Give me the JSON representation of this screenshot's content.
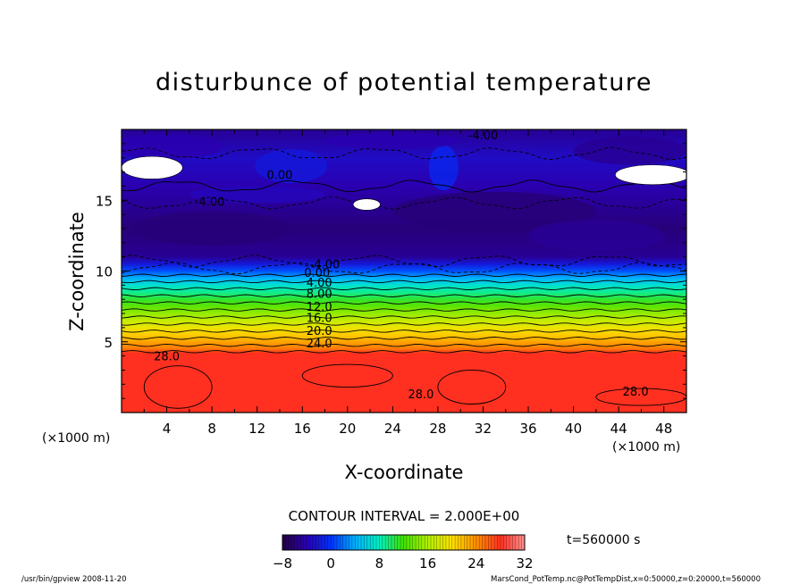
{
  "chart_data": {
    "type": "heatmap",
    "title": "disturbunce of potential temperature",
    "xlabel": "X-coordinate",
    "ylabel": "Z-coordinate",
    "x_unit": "(×1000 m)",
    "y_unit": "(×1000 m)",
    "xlim": [
      0,
      50
    ],
    "ylim": [
      0,
      20
    ],
    "x_ticks": [
      4,
      8,
      12,
      16,
      20,
      24,
      28,
      32,
      36,
      40,
      44,
      48
    ],
    "y_ticks": [
      5,
      10,
      15
    ],
    "contour_interval_label": "CONTOUR INTERVAL = 2.000E+00",
    "time_label": "t=560000 s",
    "colorbar": {
      "min": -8,
      "max": 32,
      "ticks": [
        -8,
        0,
        8,
        16,
        24,
        32
      ],
      "tick_labels": [
        "−8",
        "0",
        "8",
        "16",
        "24",
        "32"
      ],
      "colors": [
        "#230042",
        "#2a00b0",
        "#0030ff",
        "#00b0ff",
        "#00f0c0",
        "#40e000",
        "#b0f000",
        "#ffe000",
        "#ff9000",
        "#ff3020",
        "#ff9090"
      ]
    },
    "profile": {
      "z": [
        0,
        4.2,
        4.5,
        5,
        5.5,
        6,
        6.5,
        7,
        7.5,
        8,
        8.5,
        9,
        9.5,
        10,
        10.5,
        11,
        13,
        16,
        18,
        20
      ],
      "theta": [
        28,
        28,
        25,
        23,
        21,
        19,
        17,
        15,
        13,
        11,
        9,
        7,
        4,
        1,
        -2,
        -5,
        -6,
        -4,
        -3,
        -5
      ]
    },
    "contour_labels": [
      {
        "text": "28.0",
        "x": 4,
        "z": 3.7
      },
      {
        "text": "28.0",
        "x": 26.5,
        "z": 1
      },
      {
        "text": "28.0",
        "x": 45.5,
        "z": 1.2
      },
      {
        "text": "24.0",
        "x": 17.5,
        "z": 4.6
      },
      {
        "text": "20.0",
        "x": 17.5,
        "z": 5.5
      },
      {
        "text": "16.0",
        "x": 17.5,
        "z": 6.4
      },
      {
        "text": "12.0",
        "x": 17.5,
        "z": 7.2
      },
      {
        "text": "8.00",
        "x": 17.5,
        "z": 8.1
      },
      {
        "text": "4.00",
        "x": 17.5,
        "z": 8.9
      },
      {
        "text": "0.00",
        "x": 17.3,
        "z": 9.6
      },
      {
        "text": "-4.00",
        "x": 18,
        "z": 10.2
      },
      {
        "text": "-4.00",
        "x": 7.8,
        "z": 14.6
      },
      {
        "text": "0.00",
        "x": 14,
        "z": 16.5
      },
      {
        "text": "-4.00",
        "x": 32,
        "z": 19.3
      }
    ],
    "footer_left": "/usr/bin/gpview   2008-11-20",
    "footer_right": "MarsCond_PotTemp.nc@PotTempDist,x=0:50000,z=0:20000,t=560000"
  }
}
